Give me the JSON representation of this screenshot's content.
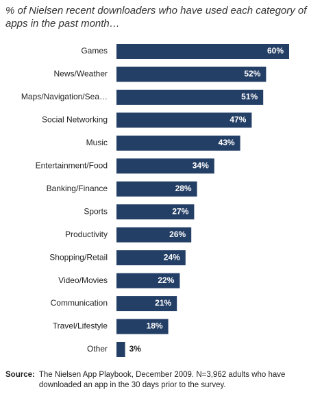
{
  "chart_data": {
    "type": "bar",
    "orientation": "horizontal",
    "title": "% of Nielsen recent downloaders who have used each category of apps in the past month…",
    "categories": [
      "Games",
      "News/Weather",
      "Maps/Navigation/Sea…",
      "Social Networking",
      "Music",
      "Entertainment/Food",
      "Banking/Finance",
      "Sports",
      "Productivity",
      "Shopping/Retail",
      "Video/Movies",
      "Communication",
      "Travel/Lifestyle",
      "Other"
    ],
    "values": [
      60,
      52,
      51,
      47,
      43,
      34,
      28,
      27,
      26,
      24,
      22,
      21,
      18,
      3
    ],
    "value_labels": [
      "60%",
      "52%",
      "51%",
      "47%",
      "43%",
      "34%",
      "28%",
      "27%",
      "26%",
      "24%",
      "22%",
      "21%",
      "18%",
      "3%"
    ],
    "color": "#243f66",
    "source_label": "Source:",
    "source": "The Nielsen App Playbook, December 2009. N=3,962 adults who have downloaded an app in the 30 days prior to the survey."
  }
}
